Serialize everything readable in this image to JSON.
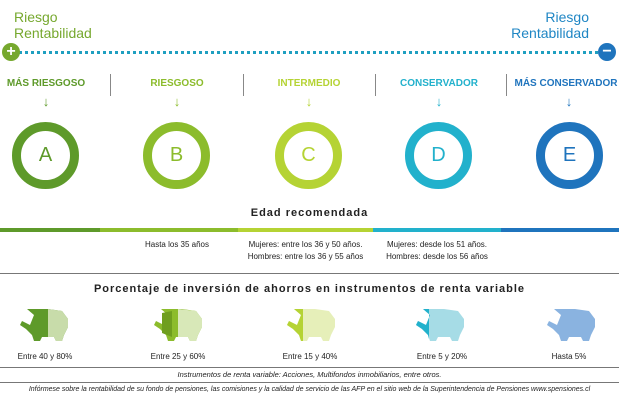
{
  "header": {
    "left": [
      "Riesgo",
      "Rentabilidad"
    ],
    "right": [
      "Riesgo",
      "Rentabilidad"
    ],
    "plus_symbol": "+",
    "minus_symbol": "−"
  },
  "funds": [
    {
      "category": "MÁS RIESGOSO",
      "letter": "A",
      "color": "#5e9a2a",
      "ages": [],
      "percent": "Entre 40 y 80%"
    },
    {
      "category": "RIESGOSO",
      "letter": "B",
      "color": "#8cbc2c",
      "ages": [
        "Hasta los 35 años"
      ],
      "percent": "Entre 25 y 60%"
    },
    {
      "category": "INTERMEDIO",
      "letter": "C",
      "color": "#b5d334",
      "ages": [
        "Mujeres: entre los 36 y 50 años.",
        "Hombres: entre los 36 y 55 años"
      ],
      "percent": "Entre 15 y 40%"
    },
    {
      "category": "CONSERVADOR",
      "letter": "D",
      "color": "#22b1cc",
      "ages": [
        "Mujeres: desde los 51 años.",
        "Hombres: desde los 56 años"
      ],
      "percent": "Entre 5 y 20%"
    },
    {
      "category": "MÁS CONSERVADOR",
      "letter": "E",
      "color": "#1f74bd",
      "ages": [],
      "percent": "Hasta 5%"
    }
  ],
  "arrow_glyph": "↓",
  "sections": {
    "age_title": "Edad recomendada",
    "percent_title": "Porcentaje de inversión de ahorros en instrumentos de renta variable"
  },
  "footnotes": {
    "instruments": "Instrumentos de renta variable: Acciones, Multifondos inmobiliarios, entre otros.",
    "info": "Infórmese sobre la rentabilidad de su fondo de pensiones, las comisiones y la calidad de servicio de las AFP en el sitio web de la Superintendencia de Pensiones www.spensiones.cl"
  }
}
